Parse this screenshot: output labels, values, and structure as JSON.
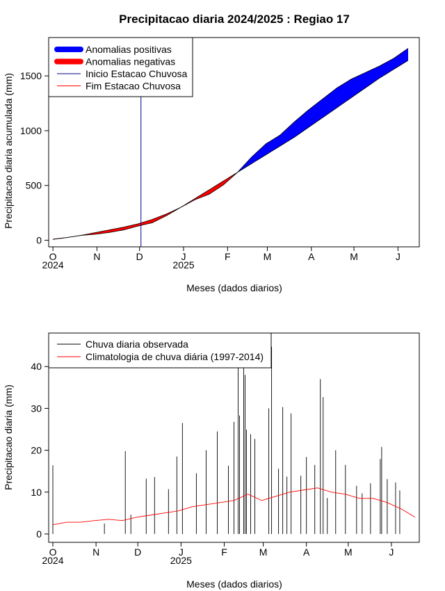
{
  "page": {
    "title": "Precipitacao diaria 2024/2025 : Regiao 17"
  },
  "chart_data": [
    {
      "type": "area",
      "title": "Precipitacao diaria 2024/2025 : Regiao 17",
      "xlabel": "Meses (dados diarios)",
      "ylabel": "Precipitacao diaria acumulada (mm)",
      "x_unit": "days since 2024-10-01",
      "xlim": [
        -3,
        258
      ],
      "ylim": [
        -60,
        1850
      ],
      "x_ticks": [
        {
          "day": 0,
          "label": "O",
          "year": "2024"
        },
        {
          "day": 31,
          "label": "N"
        },
        {
          "day": 61,
          "label": "D"
        },
        {
          "day": 92,
          "label": "J",
          "year": "2025"
        },
        {
          "day": 123,
          "label": "F"
        },
        {
          "day": 151,
          "label": "M"
        },
        {
          "day": 182,
          "label": "A"
        },
        {
          "day": 212,
          "label": "M"
        },
        {
          "day": 243,
          "label": "J"
        }
      ],
      "y_ticks": [
        0,
        500,
        1000,
        1500
      ],
      "grid": false,
      "legend_position": "top-left",
      "legend": [
        {
          "label": "Anomalias positivas",
          "color": "#0000ff",
          "kind": "thick"
        },
        {
          "label": "Anomalias negativas",
          "color": "#ff0000",
          "kind": "thick"
        },
        {
          "label": "Inicio Estacao Chuvosa",
          "color": "#00008b",
          "kind": "thin"
        },
        {
          "label": "Fim Estacao Chuvosa",
          "color": "#ff0000",
          "kind": "thin"
        }
      ],
      "onset_day": 62,
      "series": [
        {
          "name": "observed_accumulated",
          "x": [
            0,
            10,
            20,
            30,
            40,
            50,
            60,
            70,
            80,
            90,
            100,
            110,
            120,
            130,
            135,
            140,
            150,
            160,
            170,
            180,
            190,
            200,
            210,
            220,
            230,
            240,
            250
          ],
          "y": [
            8,
            25,
            45,
            55,
            72,
            95,
            130,
            160,
            225,
            300,
            370,
            420,
            505,
            620,
            690,
            760,
            880,
            960,
            1080,
            1190,
            1290,
            1390,
            1470,
            1530,
            1590,
            1660,
            1750
          ]
        },
        {
          "name": "climatology_accumulated",
          "x": [
            0,
            10,
            20,
            30,
            40,
            50,
            60,
            70,
            80,
            90,
            100,
            110,
            120,
            130,
            135,
            140,
            150,
            160,
            170,
            180,
            190,
            200,
            210,
            220,
            230,
            240,
            250
          ],
          "y": [
            10,
            25,
            45,
            70,
            95,
            120,
            150,
            190,
            240,
            300,
            380,
            460,
            540,
            620,
            660,
            700,
            780,
            860,
            940,
            1030,
            1120,
            1210,
            1300,
            1390,
            1480,
            1560,
            1640
          ]
        }
      ]
    },
    {
      "type": "bar",
      "xlabel": "Meses (dados diarios)",
      "ylabel": "Precipitacao diaria (mm)",
      "x_unit": "days since 2024-10-01",
      "xlim": [
        -3,
        263
      ],
      "ylim": [
        -2,
        48
      ],
      "y_ticks": [
        0,
        10,
        20,
        30,
        40
      ],
      "grid": false,
      "legend_position": "top-left",
      "legend": [
        {
          "label": "Chuva diaria observada",
          "color": "#000000"
        },
        {
          "label": "Climatologia de chuva diária (1997-2014)",
          "color": "#ff0000"
        }
      ],
      "observed_peaks": [
        {
          "day": 0,
          "value": 16.4
        },
        {
          "day": 37,
          "value": 2.5
        },
        {
          "day": 52,
          "value": 19.8
        },
        {
          "day": 56,
          "value": 4.6
        },
        {
          "day": 67,
          "value": 13.2
        },
        {
          "day": 73,
          "value": 13.6
        },
        {
          "day": 83,
          "value": 10.7
        },
        {
          "day": 89,
          "value": 18.5
        },
        {
          "day": 93,
          "value": 26.5
        },
        {
          "day": 103,
          "value": 14.5
        },
        {
          "day": 110,
          "value": 20.0
        },
        {
          "day": 118,
          "value": 24.5
        },
        {
          "day": 126,
          "value": 16.3
        },
        {
          "day": 130,
          "value": 26.8
        },
        {
          "day": 133,
          "value": 40.4
        },
        {
          "day": 134,
          "value": 28.3
        },
        {
          "day": 137,
          "value": 40.5
        },
        {
          "day": 138,
          "value": 38.0
        },
        {
          "day": 139,
          "value": 24.9
        },
        {
          "day": 142,
          "value": 23.8
        },
        {
          "day": 145,
          "value": 22.7
        },
        {
          "day": 155,
          "value": 30.0
        },
        {
          "day": 157,
          "value": 44.7
        },
        {
          "day": 162,
          "value": 15.6
        },
        {
          "day": 165,
          "value": 30.3
        },
        {
          "day": 168,
          "value": 13.7
        },
        {
          "day": 171,
          "value": 28.8
        },
        {
          "day": 178,
          "value": 13.9
        },
        {
          "day": 182,
          "value": 18.4
        },
        {
          "day": 188,
          "value": 16.5
        },
        {
          "day": 192,
          "value": 37.0
        },
        {
          "day": 194,
          "value": 32.7
        },
        {
          "day": 197,
          "value": 8.6
        },
        {
          "day": 203,
          "value": 20.0
        },
        {
          "day": 210,
          "value": 16.5
        },
        {
          "day": 218,
          "value": 11.5
        },
        {
          "day": 222,
          "value": 9.7
        },
        {
          "day": 228,
          "value": 12.1
        },
        {
          "day": 235,
          "value": 17.9
        },
        {
          "day": 236,
          "value": 20.8
        },
        {
          "day": 240,
          "value": 13.1
        },
        {
          "day": 246,
          "value": 12.3
        },
        {
          "day": 249,
          "value": 10.4
        }
      ],
      "climatology": {
        "x": [
          0,
          10,
          20,
          30,
          40,
          50,
          60,
          70,
          80,
          90,
          100,
          110,
          120,
          130,
          140,
          150,
          160,
          170,
          180,
          190,
          200,
          210,
          220,
          230,
          240,
          250,
          255,
          260
        ],
        "y": [
          2.2,
          2.8,
          2.8,
          3.2,
          3.5,
          3.2,
          4.0,
          4.5,
          5.0,
          5.5,
          6.5,
          7.0,
          7.5,
          8.0,
          9.5,
          8.0,
          9.0,
          10.0,
          10.5,
          11.0,
          10.0,
          9.5,
          8.5,
          8.5,
          7.5,
          6.0,
          5.0,
          4.0
        ]
      }
    }
  ]
}
